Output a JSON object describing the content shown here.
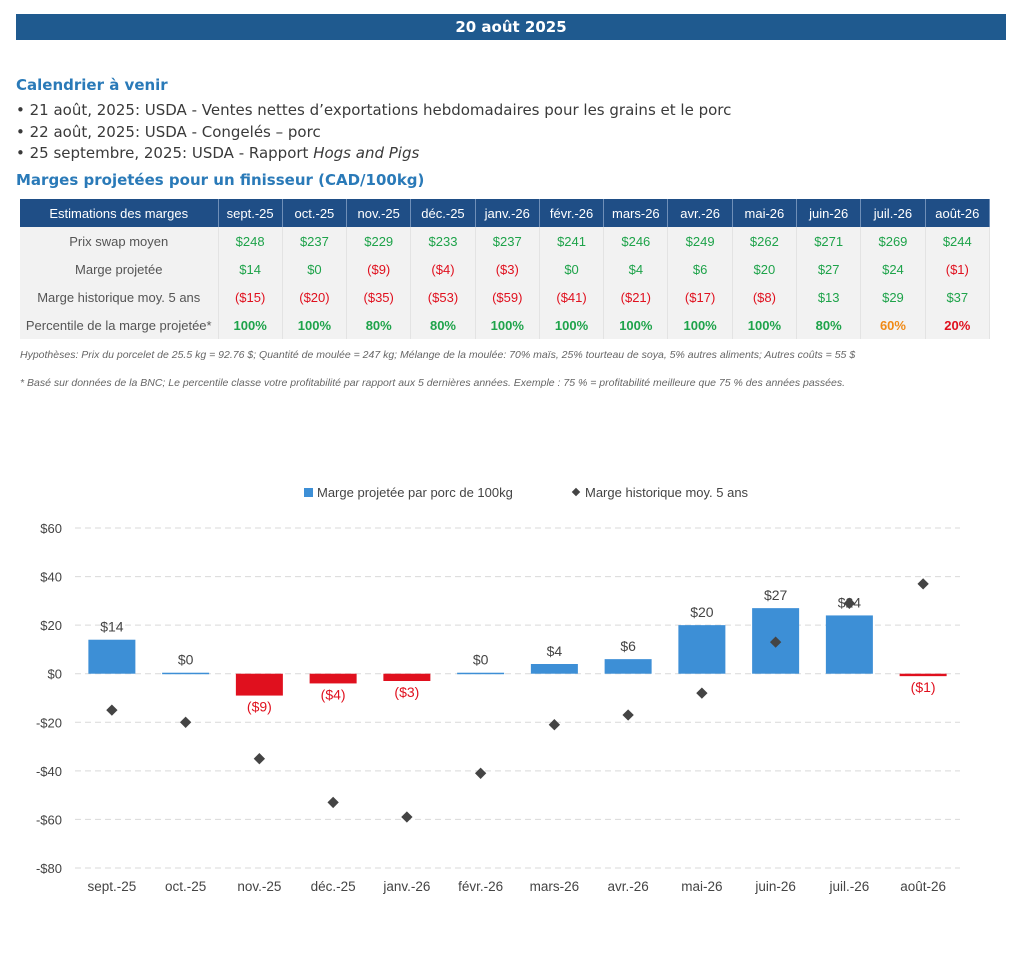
{
  "banner": {
    "date": "20 août 2025"
  },
  "calendar": {
    "title": "Calendrier à venir",
    "items": [
      {
        "text": "• 21 août, 2025: USDA - Ventes nettes d’exportations hebdomadaires pour les grains et le porc",
        "italic": ""
      },
      {
        "text": "• 22 août, 2025: USDA - Congelés – porc",
        "italic": ""
      },
      {
        "text": "• 25 septembre, 2025: USDA - Rapport ",
        "italic": "Hogs and Pigs"
      }
    ]
  },
  "margins_section": {
    "title": "Marges projetées pour un finisseur (CAD/100kg)"
  },
  "table": {
    "header_label": "Estimations des marges",
    "months": [
      "sept.-25",
      "oct.-25",
      "nov.-25",
      "déc.-25",
      "janv.-26",
      "févr.-26",
      "mars-26",
      "avr.-26",
      "mai-26",
      "juin-26",
      "juil.-26",
      "août-26"
    ],
    "rows": [
      {
        "label": "Prix swap moyen",
        "values": [
          "$248",
          "$237",
          "$229",
          "$233",
          "$237",
          "$241",
          "$246",
          "$249",
          "$262",
          "$271",
          "$269",
          "$244"
        ]
      },
      {
        "label": "Marge projetée",
        "values": [
          "$14",
          "$0",
          "($9)",
          "($4)",
          "($3)",
          "$0",
          "$4",
          "$6",
          "$20",
          "$27",
          "$24",
          "($1)"
        ]
      },
      {
        "label": "Marge historique moy. 5 ans",
        "values": [
          "($15)",
          "($20)",
          "($35)",
          "($53)",
          "($59)",
          "($41)",
          "($21)",
          "($17)",
          "($8)",
          "$13",
          "$29",
          "$37"
        ]
      },
      {
        "label": "Percentile de la marge projetée*",
        "values": [
          "100%",
          "100%",
          "80%",
          "80%",
          "100%",
          "100%",
          "100%",
          "100%",
          "100%",
          "80%",
          "60%",
          "20%"
        ]
      }
    ]
  },
  "notes": {
    "hypotheses": "Hypothèses: Prix du porcelet de 25.5 kg = 92.76 $; Quantité de moulée = 247 kg; Mélange de la moulée: 70% maïs, 25% tourteau de soya, 5% autres aliments; Autres coûts = 55 $",
    "footnote": "* Basé sur données de la BNC; Le percentile classe votre profitabilité par rapport aux 5 dernières années. Exemple : 75 % = profitabilité meilleure que 75 % des années passées."
  },
  "colors": {
    "banner": "#1f5a8f",
    "table_header": "#1f4e86",
    "bar_positive": "#3d8fd6",
    "bar_negative": "#e0101e",
    "marker": "#444444",
    "green": "#1ea34a",
    "orange": "#f08a16",
    "red": "#e0101e"
  },
  "chart_data": {
    "type": "bar",
    "categories": [
      "sept.-25",
      "oct.-25",
      "nov.-25",
      "déc.-25",
      "janv.-26",
      "févr.-26",
      "mars-26",
      "avr.-26",
      "mai-26",
      "juin-26",
      "juil.-26",
      "août-26"
    ],
    "series": [
      {
        "name": "Marge projetée par porc de 100kg",
        "type": "bar",
        "values": [
          14,
          0,
          -9,
          -4,
          -3,
          0,
          4,
          6,
          20,
          27,
          24,
          -1
        ],
        "labels": [
          "$14",
          "$0",
          "($9)",
          "($4)",
          "($3)",
          "$0",
          "$4",
          "$6",
          "$20",
          "$27",
          "$24",
          "($1)"
        ]
      },
      {
        "name": "Marge historique moy. 5 ans",
        "type": "scatter",
        "values": [
          -15,
          -20,
          -35,
          -53,
          -59,
          -41,
          -21,
          -17,
          -8,
          13,
          29,
          37
        ]
      }
    ],
    "ylim": [
      -80,
      60
    ],
    "yticks": [
      60,
      40,
      20,
      0,
      -20,
      -40,
      -60,
      -80
    ],
    "ytick_labels": [
      "$60",
      "$40",
      "$20",
      "$0",
      "-$20",
      "-$40",
      "-$60",
      "-$80"
    ],
    "grid": true,
    "legend": "top"
  }
}
